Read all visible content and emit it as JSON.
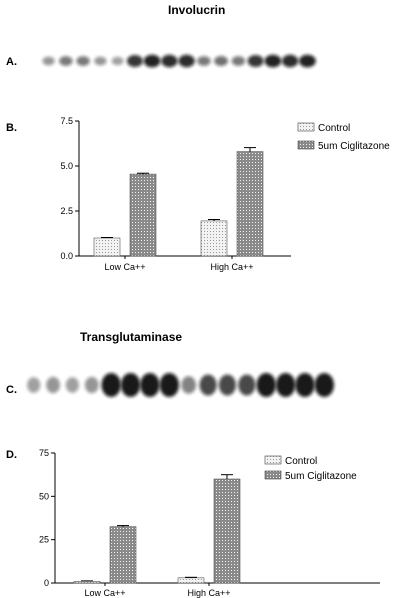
{
  "figure": {
    "title_top": "Involucrin",
    "title_bottom": "Transglutaminase",
    "panel_labels": [
      "A.",
      "B.",
      "C.",
      "D."
    ]
  },
  "colors": {
    "control": "#d8d8d8",
    "treated": "#8a8a8a",
    "axis": "#000000",
    "band": "#111111"
  },
  "blots": [
    {
      "name": "involucrin-blot",
      "lanes": 16,
      "intensity": [
        0.35,
        0.5,
        0.5,
        0.35,
        0.3,
        0.85,
        0.95,
        0.9,
        0.9,
        0.5,
        0.55,
        0.5,
        0.85,
        0.95,
        0.9,
        0.95
      ]
    },
    {
      "name": "transglutaminase-blot",
      "lanes": 16,
      "intensity": [
        0.3,
        0.35,
        0.3,
        0.35,
        1.0,
        1.0,
        1.0,
        1.0,
        0.45,
        0.75,
        0.75,
        0.75,
        1.0,
        1.0,
        1.0,
        1.0
      ]
    }
  ],
  "chart_data": [
    {
      "type": "bar",
      "categories": [
        "Low Ca++",
        "High Ca++"
      ],
      "series": [
        {
          "name": "Control",
          "values": [
            1.0,
            1.95
          ],
          "errors": [
            0.03,
            0.08
          ]
        },
        {
          "name": "5um Ciglitazone",
          "values": [
            4.55,
            5.8
          ],
          "errors": [
            0.05,
            0.22
          ]
        }
      ],
      "yticks": [
        "0.0",
        "2.5",
        "5.0",
        "7.5"
      ],
      "ylim": [
        0,
        7.5
      ],
      "legend": "top-right"
    },
    {
      "type": "bar",
      "categories": [
        "Low Ca++",
        "High Ca++"
      ],
      "series": [
        {
          "name": "Control",
          "values": [
            1.0,
            3.0
          ],
          "errors": [
            0.2,
            0.3
          ]
        },
        {
          "name": "5um Ciglitazone",
          "values": [
            32.5,
            60.0
          ],
          "errors": [
            0.6,
            2.5
          ]
        }
      ],
      "yticks": [
        "0",
        "25",
        "50",
        "75"
      ],
      "ylim": [
        0,
        75
      ],
      "legend": "top-right"
    }
  ]
}
